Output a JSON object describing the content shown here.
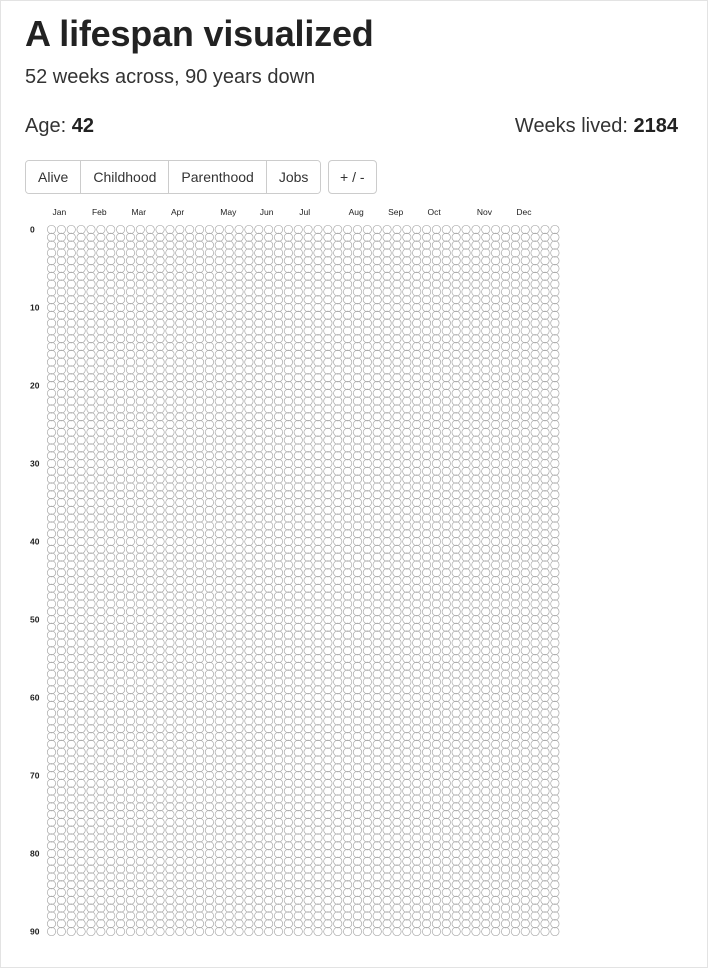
{
  "header": {
    "title": "A lifespan visualized",
    "subtitle": "52 weeks across, 90 years down"
  },
  "stats": {
    "age_label": "Age:",
    "age_value": "42",
    "weeks_label": "Weeks lived:",
    "weeks_value": "2184"
  },
  "toolbar": {
    "buttons": [
      "Alive",
      "Childhood",
      "Parenthood",
      "Jobs"
    ],
    "toggle_label": "+ / -"
  },
  "chart_data": {
    "type": "heatmap",
    "columns": 52,
    "rows": 91,
    "weeks_per_year": 52,
    "years_shown": 90,
    "month_labels": [
      "Jan",
      "Feb",
      "Mar",
      "Apr",
      "May",
      "Jun",
      "Jul",
      "Aug",
      "Sep",
      "Oct",
      "Nov",
      "Dec"
    ],
    "month_start_weeks": [
      1,
      5,
      9,
      13,
      18,
      22,
      26,
      31,
      35,
      39,
      44,
      48
    ],
    "year_labels": [
      0,
      10,
      20,
      30,
      40,
      50,
      60,
      70,
      80,
      90
    ],
    "filled_weeks": 0,
    "circle_color": "#a9a9a9"
  }
}
